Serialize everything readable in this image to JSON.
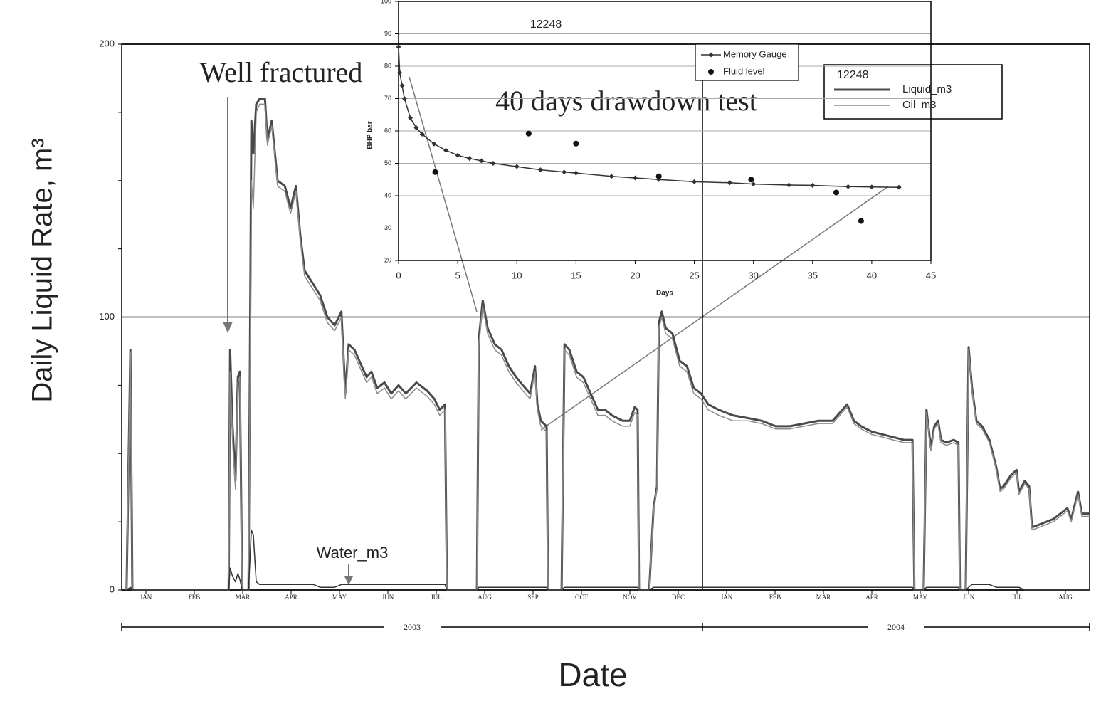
{
  "chart_data": [
    {
      "type": "line",
      "y_label": "Daily Liquid Rate, m³",
      "x_label": "Date",
      "legend_title": "12248",
      "legend": "top-right",
      "annotations": [
        {
          "text": "Well fractured"
        },
        {
          "text": "40 days drawdown test"
        }
      ],
      "xlim": [
        0,
        20
      ],
      "xticks": [
        {
          "value": 0.5,
          "label": "JAN"
        },
        {
          "value": 1.5,
          "label": "FEB"
        },
        {
          "value": 2.5,
          "label": "MAR"
        },
        {
          "value": 3.5,
          "label": "APR"
        },
        {
          "value": 4.5,
          "label": "MAY"
        },
        {
          "value": 5.5,
          "label": "JUN"
        },
        {
          "value": 6.5,
          "label": "JUL"
        },
        {
          "value": 7.5,
          "label": "AUG"
        },
        {
          "value": 8.5,
          "label": "SEP"
        },
        {
          "value": 9.5,
          "label": "OCT"
        },
        {
          "value": 10.5,
          "label": "NOV"
        },
        {
          "value": 11.5,
          "label": "DEC"
        },
        {
          "value": 12.5,
          "label": "JAN"
        },
        {
          "value": 13.5,
          "label": "FEB"
        },
        {
          "value": 14.5,
          "label": "MAR"
        },
        {
          "value": 15.5,
          "label": "APR"
        },
        {
          "value": 16.5,
          "label": "MAY"
        },
        {
          "value": 17.5,
          "label": "JUN"
        },
        {
          "value": 18.5,
          "label": "JUL"
        },
        {
          "value": 19.5,
          "label": "AUG"
        }
      ],
      "year_ticks": [
        {
          "value": 6,
          "label": "2003"
        },
        {
          "value": 16,
          "label": "2004"
        }
      ],
      "vlines": [
        12
      ],
      "ylim": [
        0,
        200
      ],
      "yticks": [
        0,
        100,
        200
      ],
      "yminorticks": [
        25,
        50,
        75,
        125,
        150,
        175
      ],
      "grid": true,
      "x": [
        0.1,
        0.18,
        0.22,
        2.0,
        2.21,
        2.24,
        2.29,
        2.35,
        2.4,
        2.44,
        2.49,
        2.62,
        2.68,
        2.72,
        2.78,
        2.85,
        2.96,
        3.01,
        3.1,
        3.22,
        3.37,
        3.49,
        3.6,
        3.69,
        3.78,
        3.96,
        4.1,
        4.25,
        4.4,
        4.54,
        4.62,
        4.69,
        4.81,
        4.96,
        5.06,
        5.16,
        5.28,
        5.43,
        5.57,
        5.72,
        5.87,
        6.09,
        6.31,
        6.46,
        6.57,
        6.68,
        6.72,
        7.34,
        7.38,
        7.46,
        7.56,
        7.71,
        7.85,
        8.0,
        8.15,
        8.29,
        8.44,
        8.54,
        8.59,
        8.66,
        8.78,
        8.81,
        9.09,
        9.15,
        9.25,
        9.4,
        9.54,
        9.69,
        9.84,
        9.99,
        10.13,
        10.35,
        10.5,
        10.6,
        10.66,
        10.69,
        10.9,
        10.99,
        11.06,
        11.1,
        11.16,
        11.24,
        11.38,
        11.53,
        11.68,
        11.82,
        11.97,
        12.12,
        12.34,
        12.63,
        12.93,
        13.22,
        13.51,
        13.81,
        14.1,
        14.4,
        14.69,
        14.99,
        15.13,
        15.28,
        15.5,
        15.72,
        15.94,
        16.16,
        16.34,
        16.38,
        16.57,
        16.63,
        16.72,
        16.79,
        16.87,
        16.93,
        17.04,
        17.19,
        17.29,
        17.32,
        17.44,
        17.5,
        17.57,
        17.66,
        17.78,
        17.93,
        18.07,
        18.15,
        18.22,
        18.37,
        18.49,
        18.54,
        18.66,
        18.75,
        18.81,
        18.96,
        19.25,
        19.54,
        19.62,
        19.76,
        19.84,
        20.0
      ],
      "series": [
        {
          "name": "Liquid_m3",
          "color": "#4a4a4a",
          "width": 3,
          "values": [
            0,
            88,
            0,
            0,
            0,
            88,
            60,
            40,
            78,
            80,
            0,
            0,
            172,
            160,
            178,
            180,
            180,
            165,
            172,
            150,
            148,
            140,
            148,
            130,
            117,
            112,
            108,
            100,
            97,
            102,
            72,
            90,
            88,
            82,
            78,
            80,
            74,
            76,
            72,
            75,
            72,
            76,
            73,
            70,
            66,
            68,
            0,
            0,
            92,
            106,
            96,
            90,
            88,
            82,
            78,
            75,
            72,
            82,
            68,
            62,
            60,
            0,
            0,
            90,
            88,
            80,
            78,
            72,
            66,
            66,
            64,
            62,
            62,
            67,
            66,
            0,
            0,
            30,
            38,
            98,
            102,
            96,
            94,
            84,
            82,
            74,
            72,
            68,
            66,
            64,
            63,
            62,
            60,
            60,
            61,
            62,
            62,
            68,
            62,
            60,
            58,
            57,
            56,
            55,
            55,
            0,
            0,
            66,
            52,
            60,
            62,
            55,
            54,
            55,
            54,
            0,
            0,
            89,
            74,
            62,
            60,
            55,
            45,
            37,
            38,
            42,
            44,
            36,
            40,
            38,
            23,
            24,
            26,
            30,
            26,
            36,
            28,
            28
          ]
        },
        {
          "name": "Oil_m3",
          "color": "#8c8c8c",
          "width": 1.5,
          "values": [
            0,
            87,
            0,
            0,
            0,
            80,
            55,
            37,
            76,
            78,
            0,
            0,
            150,
            140,
            175,
            178,
            178,
            163,
            170,
            148,
            146,
            138,
            146,
            128,
            115,
            110,
            106,
            98,
            95,
            100,
            70,
            88,
            86,
            80,
            76,
            78,
            72,
            74,
            70,
            73,
            70,
            74,
            71,
            68,
            64,
            66,
            0,
            0,
            90,
            104,
            94,
            88,
            86,
            80,
            76,
            73,
            70,
            80,
            66,
            60,
            58,
            0,
            0,
            88,
            86,
            78,
            76,
            70,
            64,
            64,
            62,
            60,
            60,
            65,
            64,
            0,
            0,
            29,
            37,
            96,
            100,
            94,
            92,
            82,
            80,
            72,
            70,
            66,
            64,
            62,
            62,
            61,
            59,
            59,
            60,
            61,
            61,
            67,
            61,
            59,
            57,
            56,
            55,
            54,
            54,
            0,
            0,
            65,
            51,
            59,
            61,
            54,
            53,
            54,
            53,
            0,
            0,
            88,
            73,
            61,
            59,
            54,
            44,
            36,
            37,
            41,
            43,
            35,
            39,
            37,
            22,
            23,
            25,
            29,
            25,
            35,
            27,
            27
          ]
        },
        {
          "name": "Water_m3",
          "color": "#333333",
          "width": 1.5,
          "in_legend": false,
          "values": [
            0,
            1,
            0,
            0,
            0,
            8,
            5,
            3,
            6,
            4,
            0,
            0,
            22,
            20,
            3,
            2,
            2,
            2,
            2,
            2,
            2,
            2,
            2,
            2,
            2,
            2,
            1,
            1,
            1,
            2,
            2,
            2,
            2,
            2,
            2,
            2,
            2,
            2,
            2,
            2,
            2,
            2,
            2,
            2,
            2,
            2,
            0,
            0,
            1,
            1,
            1,
            1,
            1,
            1,
            1,
            1,
            1,
            1,
            1,
            1,
            1,
            0,
            0,
            1,
            1,
            1,
            1,
            1,
            1,
            1,
            1,
            1,
            1,
            1,
            1,
            0,
            0,
            1,
            1,
            1,
            1,
            1,
            1,
            1,
            1,
            1,
            1,
            1,
            1,
            1,
            1,
            1,
            1,
            1,
            1,
            1,
            1,
            1,
            1,
            1,
            1,
            1,
            1,
            1,
            1,
            0,
            0,
            1,
            1,
            1,
            1,
            1,
            1,
            1,
            1,
            0,
            0,
            1,
            2,
            2,
            2,
            2,
            1,
            1,
            1,
            1,
            1,
            1,
            0,
            0,
            0,
            0,
            0,
            0,
            0,
            0,
            0,
            0
          ]
        }
      ]
    },
    {
      "type": "line",
      "title": "12248",
      "x_label": "Days",
      "y_label": "BHP bar",
      "legend": "top-right",
      "xlim": [
        0,
        45
      ],
      "xticks": [
        0,
        5,
        10,
        15,
        20,
        25,
        30,
        35,
        40,
        45
      ],
      "ylim": [
        20,
        100
      ],
      "yticks": [
        20,
        30,
        40,
        50,
        60,
        70,
        80,
        90,
        100
      ],
      "grid": true,
      "series": [
        {
          "name": "Memory Gauge",
          "type": "line",
          "color": "#333333",
          "x": [
            0,
            0.1,
            0.3,
            0.5,
            1,
            1.5,
            2,
            3,
            4,
            5,
            6,
            7,
            8,
            10,
            12,
            14,
            15,
            18,
            20,
            22,
            25,
            28,
            30,
            33,
            35,
            38,
            40,
            42.3
          ],
          "values": [
            86,
            78,
            74,
            70,
            64,
            61,
            59,
            56,
            54,
            52.5,
            51.5,
            50.8,
            50,
            49,
            48,
            47.3,
            47,
            46,
            45.5,
            45,
            44.3,
            44,
            43.6,
            43.3,
            43.2,
            42.8,
            42.7,
            42.6
          ]
        },
        {
          "name": "Fluid level",
          "type": "scatter",
          "color": "#111111",
          "x": [
            3.1,
            11,
            15,
            22,
            29.8,
            37,
            39.1
          ],
          "values": [
            47.3,
            59.2,
            56.1,
            46,
            45,
            41,
            32.2
          ]
        }
      ]
    }
  ]
}
